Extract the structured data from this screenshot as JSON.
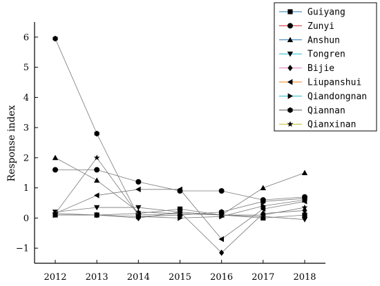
{
  "chart_data": {
    "type": "line",
    "title": "",
    "xlabel": "",
    "ylabel": "Response index",
    "ylim": [
      -1.5,
      6.5
    ],
    "yticks": [
      -1,
      0,
      1,
      2,
      3,
      4,
      5,
      6
    ],
    "categories": [
      "2012",
      "2013",
      "2014",
      "2015",
      "2016",
      "2017",
      "2018"
    ],
    "grid": false,
    "legend_position": "top-right",
    "line_color": "#777777",
    "marker_color": "#000000",
    "series": [
      {
        "name": "Guiyang",
        "marker": "square",
        "line_color": "#1f77b4",
        "values": [
          0.1,
          0.1,
          0.15,
          0.3,
          0.1,
          0.0,
          0.1
        ]
      },
      {
        "name": "Zunyi",
        "marker": "circle",
        "line_color": "#d62728",
        "values": [
          1.6,
          1.6,
          1.2,
          0.9,
          0.9,
          0.6,
          0.7
        ]
      },
      {
        "name": "Anshun",
        "marker": "triangle-up",
        "line_color": "#1f77b4",
        "values": [
          2.0,
          1.25,
          0.2,
          0.15,
          0.1,
          1.0,
          1.5
        ]
      },
      {
        "name": "Tongren",
        "marker": "triangle-down",
        "line_color": "#17becf",
        "values": [
          0.2,
          0.35,
          0.35,
          0.2,
          0.1,
          0.05,
          -0.05
        ]
      },
      {
        "name": "Bijie",
        "marker": "diamond",
        "line_color": "#e377c2",
        "values": [
          0.15,
          0.1,
          0.0,
          0.2,
          -1.15,
          0.15,
          0.25
        ]
      },
      {
        "name": "Liupanshui",
        "marker": "triangle-left",
        "line_color": "#ff7f0e",
        "values": [
          0.15,
          0.75,
          0.95,
          0.95,
          -0.7,
          0.3,
          0.55
        ]
      },
      {
        "name": "Qiandongnan",
        "marker": "triangle-right",
        "line_color": "#17becf",
        "values": [
          0.1,
          0.1,
          0.05,
          0.0,
          0.05,
          0.4,
          0.6
        ]
      },
      {
        "name": "Qiannan",
        "marker": "hexagon",
        "line_color": "#555555",
        "values": [
          5.95,
          2.8,
          0.05,
          0.1,
          0.2,
          0.55,
          0.65
        ]
      },
      {
        "name": "Qianxinan",
        "marker": "star",
        "line_color": "#bcbd22",
        "values": [
          0.15,
          2.0,
          0.1,
          0.15,
          0.1,
          0.1,
          0.35
        ]
      }
    ]
  }
}
